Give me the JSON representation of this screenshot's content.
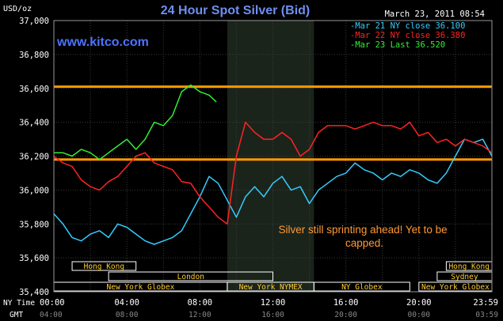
{
  "chart_data": {
    "type": "line",
    "title": "24 Hour Spot Silver (Bid)",
    "ylabel": "USD/oz",
    "timestamp": "March 23, 2011 08:54",
    "watermark": "www.kitco.com",
    "ylim": [
      35.4,
      37.0
    ],
    "xlim": [
      0,
      24
    ],
    "y_ticks": [
      "37,000",
      "36,800",
      "36,600",
      "36,400",
      "36,200",
      "36,000",
      "35,800",
      "35,600",
      "35,400"
    ],
    "y_tick_values": [
      37.0,
      36.8,
      36.6,
      36.4,
      36.2,
      36.0,
      35.8,
      35.6,
      35.4
    ],
    "x_row_label": "NY Time",
    "x_ticks": [
      "00:00",
      "04:00",
      "08:00",
      "12:00",
      "16:00",
      "20:00",
      "23:59"
    ],
    "x_tick_values": [
      0,
      4,
      8,
      12,
      16,
      20,
      24
    ],
    "gmt_row_label": "GMT",
    "gmt_ticks": [
      "04:00",
      "08:00",
      "12:00",
      "16:00",
      "20:00",
      "00:00",
      "03:59"
    ],
    "legend": [
      {
        "label": "Mar 21 NY close 36.100",
        "color": "#33ccff"
      },
      {
        "label": "Mar 22 NY close 36.380",
        "color": "#ff2222"
      },
      {
        "label": "Mar 23 Last 36.520",
        "color": "#33ee33"
      }
    ],
    "annotation": "Silver still sprinting ahead! Yet to be capped.",
    "reference_lines": [
      36.61,
      36.18
    ],
    "reference_line_color": "#ff9900",
    "highlight_region": [
      9.5,
      14.25
    ],
    "sessions": [
      {
        "label": "Hong Kong",
        "start": 1,
        "end": 4.5,
        "row": 0
      },
      {
        "label": "Hong Kong",
        "start": 21.5,
        "end": 24,
        "row": 0
      },
      {
        "label": "London",
        "start": 3,
        "end": 12,
        "row": 1
      },
      {
        "label": "Sydney",
        "start": 21,
        "end": 24,
        "row": 1
      },
      {
        "label": "New York Globex",
        "start": 0,
        "end": 9.5,
        "row": 2
      },
      {
        "label": "New York NYMEX",
        "start": 9.5,
        "end": 14.25,
        "row": 2
      },
      {
        "label": "NY Globex",
        "start": 14.25,
        "end": 19.5,
        "row": 2
      },
      {
        "label": "New York Globex",
        "start": 20,
        "end": 24,
        "row": 2
      }
    ],
    "series": [
      {
        "name": "Mar 21 NY close 36.100",
        "color": "#33ccff",
        "x": [
          0,
          0.5,
          1,
          1.5,
          2,
          2.5,
          3,
          3.5,
          4,
          4.5,
          5,
          5.5,
          6,
          6.5,
          7,
          7.5,
          8,
          8.5,
          9,
          9.5,
          10,
          10.5,
          11,
          11.5,
          12,
          12.5,
          13,
          13.5,
          14,
          14.5,
          15,
          15.5,
          16,
          16.5,
          17,
          17.5,
          18,
          18.5,
          19,
          19.5,
          20,
          20.5,
          21,
          21.5,
          22,
          22.5,
          23,
          23.5,
          24
        ],
        "y": [
          35.86,
          35.8,
          35.72,
          35.7,
          35.74,
          35.76,
          35.72,
          35.8,
          35.78,
          35.74,
          35.7,
          35.68,
          35.7,
          35.72,
          35.76,
          35.86,
          35.96,
          36.08,
          36.04,
          35.94,
          35.84,
          35.96,
          36.02,
          35.96,
          36.04,
          36.08,
          36.0,
          36.02,
          35.92,
          36.0,
          36.04,
          36.08,
          36.1,
          36.16,
          36.12,
          36.1,
          36.06,
          36.1,
          36.08,
          36.12,
          36.1,
          36.06,
          36.04,
          36.1,
          36.2,
          36.3,
          36.28,
          36.3,
          36.2
        ]
      },
      {
        "name": "Mar 22 NY close 36.380",
        "color": "#ff2222",
        "x": [
          0,
          0.5,
          1,
          1.5,
          2,
          2.5,
          3,
          3.5,
          4,
          4.5,
          5,
          5.5,
          6,
          6.5,
          7,
          7.5,
          8,
          8.5,
          9,
          9.5,
          10,
          10.5,
          11,
          11.5,
          12,
          12.5,
          13,
          13.5,
          14,
          14.5,
          15,
          15.5,
          16,
          16.5,
          17,
          17.5,
          18,
          18.5,
          19,
          19.5,
          20,
          20.5,
          21,
          21.5,
          22,
          22.5,
          23,
          23.5,
          24
        ],
        "y": [
          36.2,
          36.16,
          36.14,
          36.06,
          36.02,
          36.0,
          36.05,
          36.08,
          36.14,
          36.2,
          36.22,
          36.16,
          36.14,
          36.12,
          36.05,
          36.04,
          35.96,
          35.9,
          35.84,
          35.8,
          36.2,
          36.4,
          36.34,
          36.3,
          36.3,
          36.34,
          36.3,
          36.2,
          36.24,
          36.34,
          36.38,
          36.38,
          36.38,
          36.36,
          36.38,
          36.4,
          36.38,
          36.38,
          36.36,
          36.4,
          36.32,
          36.34,
          36.28,
          36.3,
          36.26,
          36.3,
          36.28,
          36.26,
          36.22
        ]
      },
      {
        "name": "Mar 23 Last 36.520",
        "color": "#33ee33",
        "x": [
          0,
          0.5,
          1,
          1.5,
          2,
          2.5,
          3,
          3.5,
          4,
          4.5,
          5,
          5.5,
          6,
          6.5,
          7,
          7.5,
          8,
          8.5,
          8.9
        ],
        "y": [
          36.22,
          36.22,
          36.2,
          36.24,
          36.22,
          36.18,
          36.22,
          36.26,
          36.3,
          36.24,
          36.3,
          36.4,
          36.38,
          36.44,
          36.58,
          36.62,
          36.58,
          36.56,
          36.52
        ]
      }
    ]
  }
}
